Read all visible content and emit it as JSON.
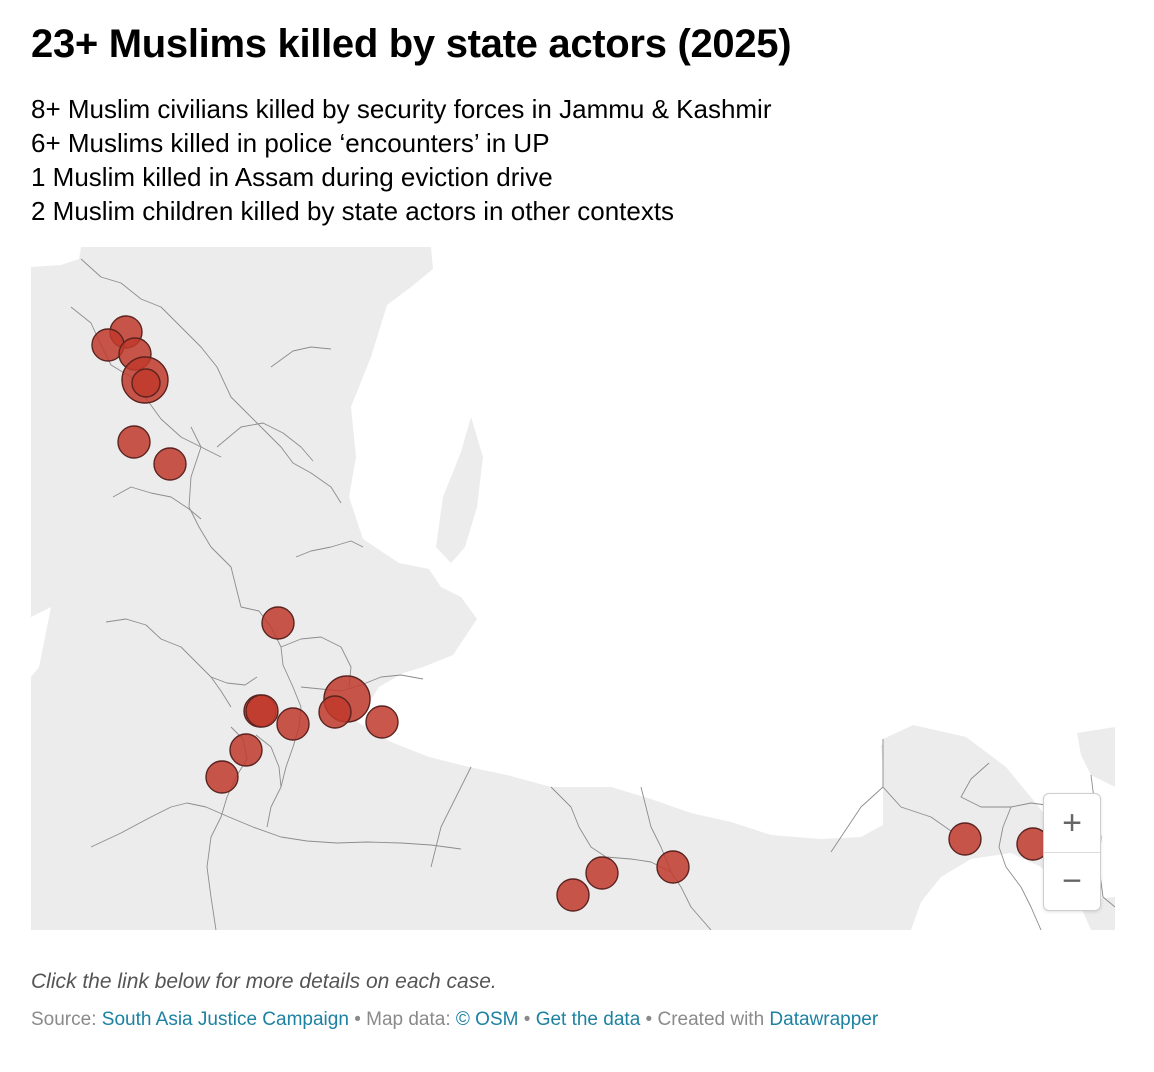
{
  "title": "23+ Muslims killed by state actors (2025)",
  "description": [
    "8+ Muslim civilians killed by security forces in Jammu & Kashmir",
    "6+ Muslims killed in police ‘encounters’ in UP",
    "1 Muslim killed in Assam during eviction drive",
    "2 Muslim children killed by state actors in other contexts"
  ],
  "map": {
    "land_color": "#ececec",
    "border_color": "#8c8c8c",
    "marker_color": "#c0392b",
    "marker_stroke": "#5a2320"
  },
  "zoom": {
    "in_label": "+",
    "out_label": "−"
  },
  "note": "Click the link below for more details on each case.",
  "footer": {
    "source_prefix": "Source:",
    "source_link": "South Asia Justice Campaign",
    "sep1": "• Map data:",
    "osm_link": "© OSM",
    "sep2": "•",
    "data_link": "Get the data",
    "sep3": "• Created with",
    "dw_link": "Datawrapper"
  }
}
